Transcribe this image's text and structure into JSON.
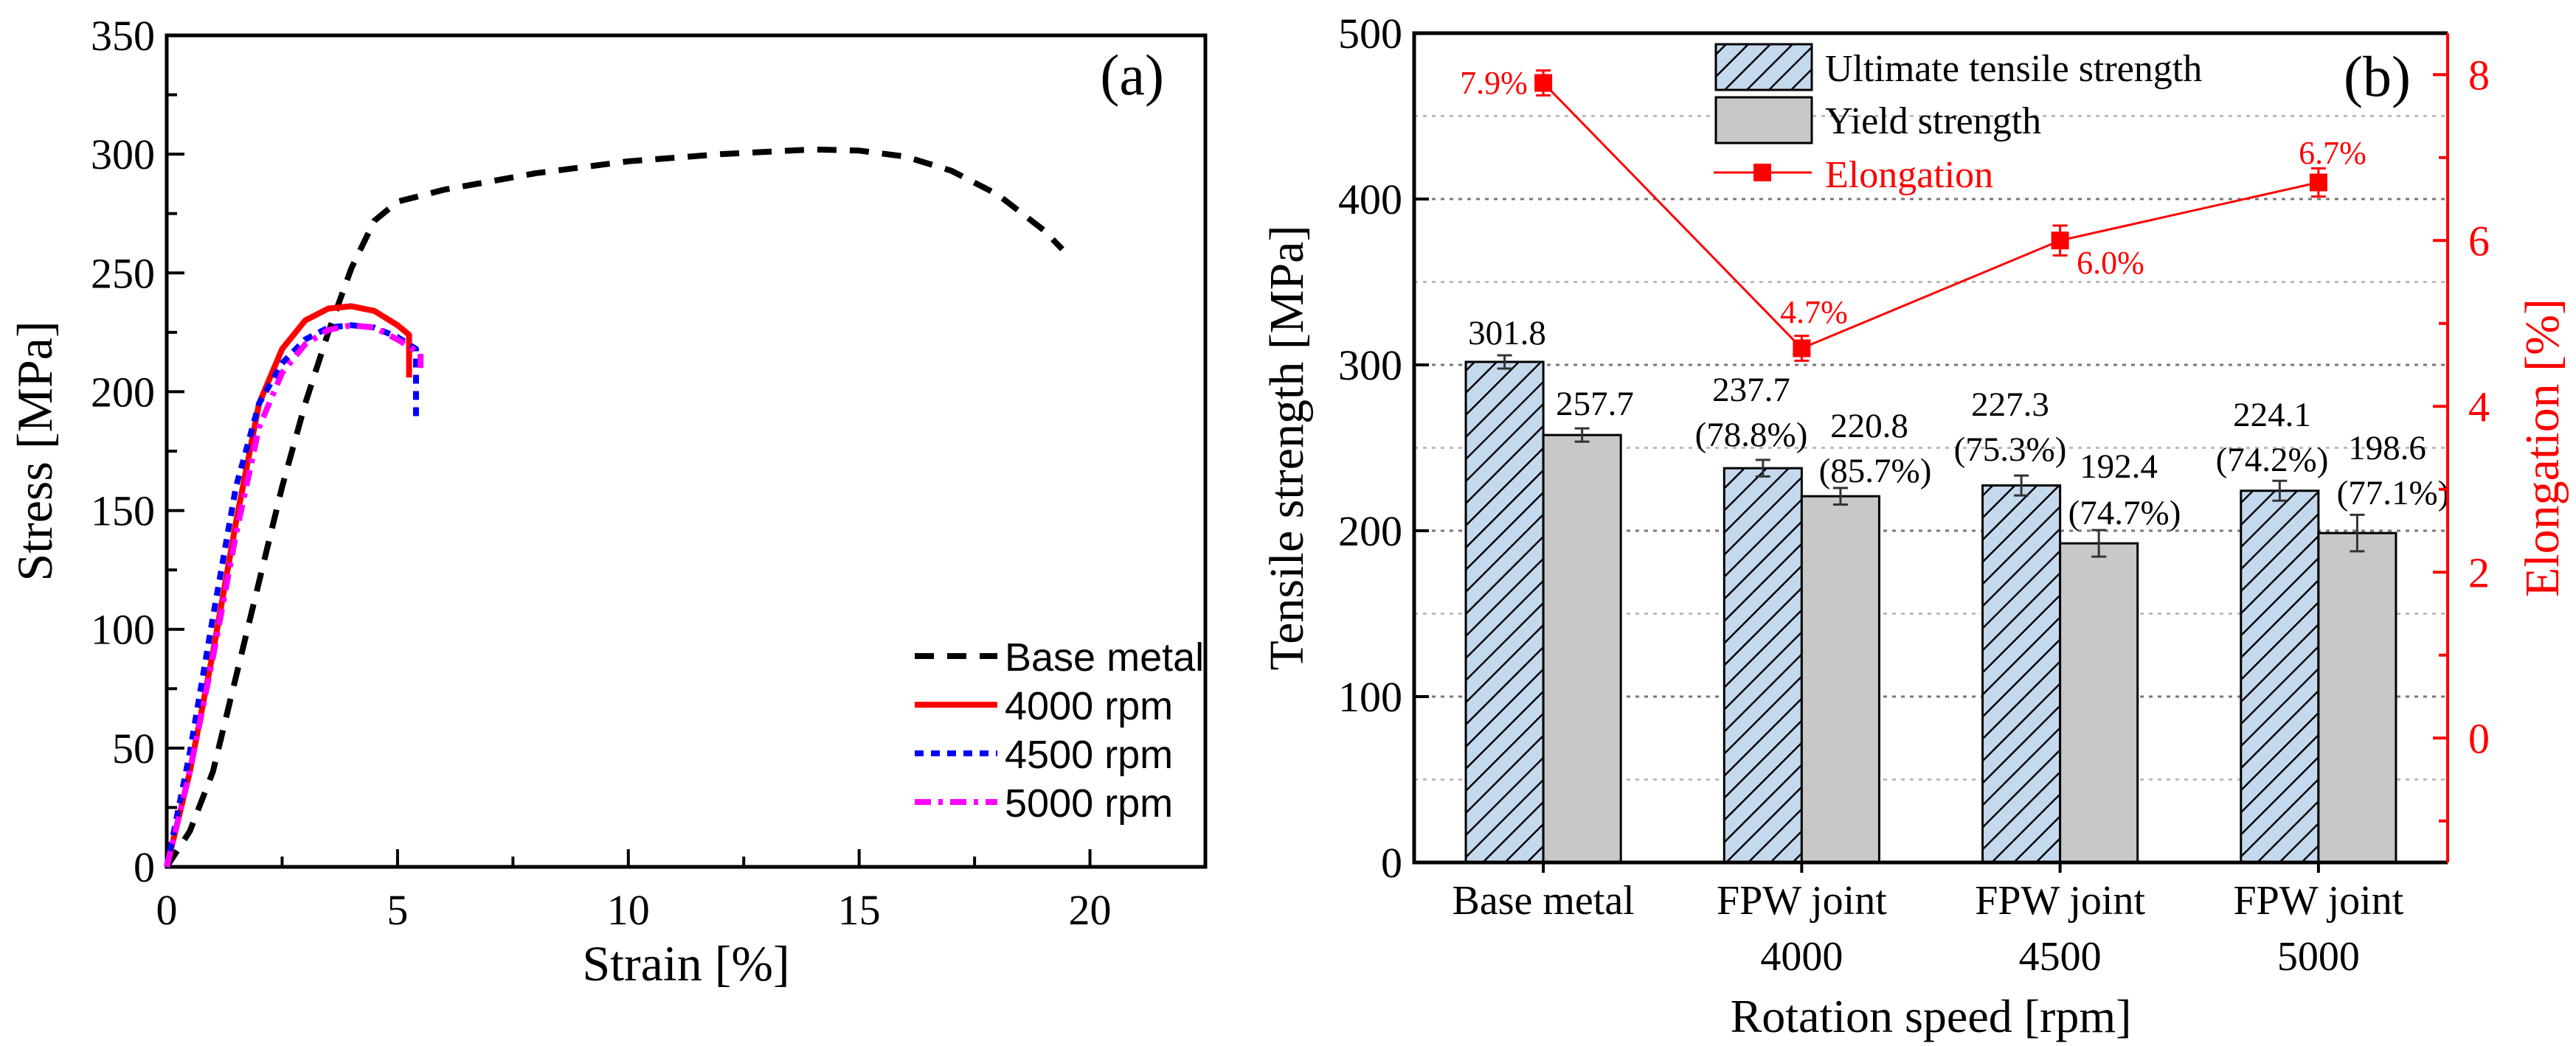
{
  "chart_data": [
    {
      "type": "line",
      "panel_label": "(a)",
      "xlabel": "Strain [%]",
      "ylabel": "Stress [MPa]",
      "xlim": [
        0,
        22.5
      ],
      "ylim": [
        0,
        350
      ],
      "xticks": [
        "0",
        "5",
        "10",
        "15",
        "20"
      ],
      "xtick_values": [
        0,
        5,
        10,
        15,
        20
      ],
      "yticks": [
        "0",
        "50",
        "100",
        "150",
        "200",
        "250",
        "300",
        "350"
      ],
      "ytick_values": [
        0,
        50,
        100,
        150,
        200,
        250,
        300,
        350
      ],
      "legend_position": "bottom-right",
      "series": [
        {
          "name": "Base metal",
          "color": "#000000",
          "dash": "dash",
          "x": [
            0,
            0.5,
            1,
            1.5,
            2,
            2.5,
            3,
            3.5,
            4,
            4.5,
            5,
            6,
            8,
            10,
            12,
            14,
            15,
            16,
            17,
            18,
            19,
            19.4
          ],
          "y": [
            0,
            15,
            40,
            80,
            120,
            160,
            195,
            225,
            252,
            272,
            280,
            285,
            292,
            297,
            300,
            302,
            301.5,
            299,
            293,
            283,
            268,
            260
          ]
        },
        {
          "name": "4000 rpm",
          "color": "#ff0000",
          "dash": "solid",
          "x": [
            0,
            0.5,
            1,
            1.5,
            2,
            2.5,
            3,
            3.5,
            4,
            4.5,
            5,
            5.25,
            5.25
          ],
          "y": [
            0,
            40,
            90,
            145,
            195,
            218,
            230,
            235,
            236,
            234,
            228,
            224,
            206
          ]
        },
        {
          "name": "4500 rpm",
          "color": "#0000ff",
          "dash": "dot",
          "x": [
            0,
            0.5,
            1,
            1.5,
            2,
            2.5,
            3,
            3.5,
            4,
            4.5,
            5,
            5.4,
            5.4
          ],
          "y": [
            0,
            48,
            105,
            160,
            195,
            212,
            222,
            227,
            228,
            227,
            223,
            218,
            188
          ]
        },
        {
          "name": "5000 rpm",
          "color": "#ff00ff",
          "dash": "dashdot",
          "x": [
            0,
            0.5,
            1,
            1.5,
            2,
            2.5,
            3,
            3.5,
            4,
            4.5,
            5,
            5.5,
            5.5
          ],
          "y": [
            0,
            40,
            88,
            140,
            185,
            208,
            220,
            226,
            228,
            227,
            222,
            216,
            210
          ]
        }
      ]
    },
    {
      "type": "bar",
      "panel_label": "(b)",
      "xlabel": "Rotation speed [rpm]",
      "ylabel": "Tensile strength [MPa]",
      "y2label": "Elongation [%]",
      "ylim": [
        0,
        500
      ],
      "y2lim": [
        -1.5,
        8.5
      ],
      "yticks": [
        "0",
        "100",
        "200",
        "300",
        "400",
        "500"
      ],
      "ytick_values": [
        0,
        100,
        200,
        300,
        400,
        500
      ],
      "y2ticks": [
        "0",
        "2",
        "4",
        "6",
        "8"
      ],
      "y2tick_values": [
        0,
        2,
        4,
        6,
        8
      ],
      "grid": true,
      "legend_position": "top-center",
      "categories": [
        [
          "Base metal"
        ],
        [
          "FPW joint",
          "4000"
        ],
        [
          "FPW joint",
          "4500"
        ],
        [
          "FPW joint",
          "5000"
        ]
      ],
      "series": [
        {
          "name": "Ultimate tensile strength",
          "type": "bar",
          "color": "#c5d9ee",
          "hatch": true,
          "values": [
            301.8,
            237.7,
            227.3,
            224.1
          ],
          "errors": [
            4,
            5,
            6,
            6
          ],
          "labels": [
            "301.8",
            "237.7\n(78.8%)",
            "227.3\n(75.3%)",
            "224.1\n(74.2%)"
          ]
        },
        {
          "name": "Yield strength",
          "type": "bar",
          "color": "#c8c8c8",
          "values": [
            257.7,
            220.8,
            192.4,
            198.6
          ],
          "errors": [
            4,
            5,
            8,
            11
          ],
          "labels": [
            "257.7",
            "220.8\n(85.7%)",
            "192.4\n(74.7%)",
            "198.6\n(77.1%)"
          ]
        },
        {
          "name": "Elongation",
          "type": "line",
          "axis": "right",
          "color": "#ff0000",
          "values": [
            7.9,
            4.7,
            6.0,
            6.7
          ],
          "errors": [
            0.15,
            0.15,
            0.18,
            0.17
          ],
          "labels": [
            "7.9%",
            "4.7%",
            "6.0%",
            "6.7%"
          ]
        }
      ]
    }
  ]
}
